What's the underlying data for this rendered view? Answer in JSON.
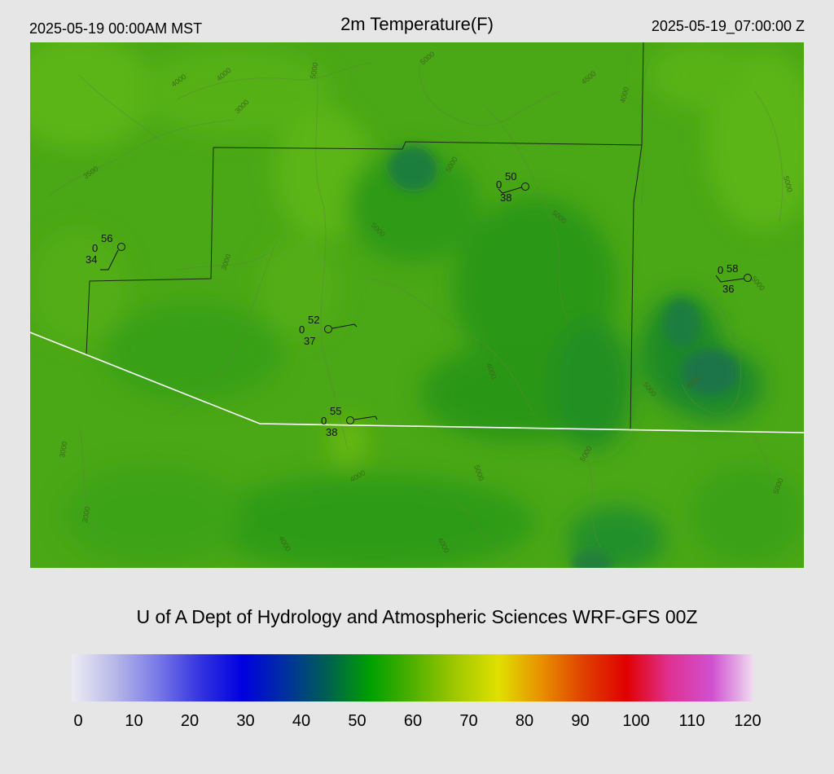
{
  "header": {
    "local_time": "2025-05-19 00:00AM MST",
    "title": "2m Temperature(F)",
    "utc_time": "2025-05-19_07:00:00 Z"
  },
  "credit": "U of A Dept of Hydrology and Atmospheric Sciences WRF-GFS 00Z",
  "colorbar": {
    "ticks": [
      "0",
      "10",
      "20",
      "30",
      "40",
      "50",
      "60",
      "70",
      "80",
      "90",
      "100",
      "110",
      "120"
    ],
    "min": 0,
    "max": 120,
    "colors": [
      "#ececf4",
      "#b8b8e8",
      "#7a7ae8",
      "#3434e0",
      "#0000e0",
      "#0030a0",
      "#006050",
      "#00a000",
      "#50b000",
      "#a0c800",
      "#e0e000",
      "#e89000",
      "#e04000",
      "#e00000",
      "#e03090",
      "#d050d0",
      "#f0e0f0"
    ]
  },
  "stations": [
    {
      "temp": "56",
      "dew": "34",
      "cloud": "0"
    },
    {
      "temp": "52",
      "dew": "37",
      "cloud": "0"
    },
    {
      "temp": "55",
      "dew": "38",
      "cloud": "0"
    },
    {
      "temp": "50",
      "dew": "38",
      "cloud": "0"
    },
    {
      "temp": "58",
      "dew": "36",
      "cloud": "0"
    }
  ],
  "contour_labels": [
    "4000",
    "4000",
    "5000",
    "5000",
    "3000",
    "3500",
    "4500",
    "4000",
    "5000",
    "5000",
    "5000",
    "3000",
    "5000",
    "5000",
    "6000",
    "5000",
    "4000",
    "5000",
    "3000",
    "3000",
    "4000",
    "5000",
    "4000",
    "4000",
    "5000"
  ]
}
